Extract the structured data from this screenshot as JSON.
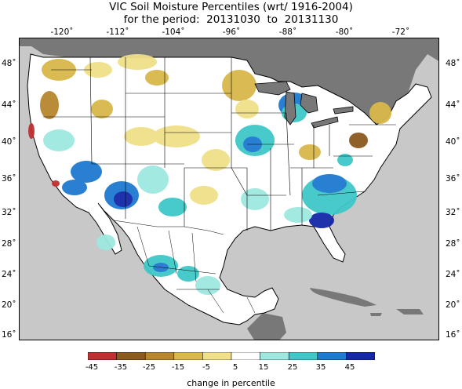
{
  "title": "VIC Soil Moisture Percentiles (wrt/ 1916-2004)",
  "period_prefix": "for the period:",
  "period_start": "20131030",
  "period_to": "to",
  "period_end": "20131130",
  "lon_labels": [
    "-120˚",
    "-112˚",
    "-104˚",
    "-96˚",
    "-88˚",
    "-80˚",
    "-72˚"
  ],
  "lat_labels": [
    "48˚",
    "44˚",
    "40˚",
    "36˚",
    "32˚",
    "28˚",
    "24˚",
    "20˚",
    "16˚"
  ],
  "legend": {
    "ticks": [
      "-45",
      "-35",
      "-25",
      "-15",
      "-5",
      "5",
      "15",
      "25",
      "35",
      "45"
    ],
    "colors": [
      "#c03030",
      "#8b5a1e",
      "#b8862e",
      "#d9b84a",
      "#f0e08a",
      "#ffffff",
      "#9ee8e0",
      "#40c8c8",
      "#1e7ad0",
      "#1428a8"
    ],
    "label": "change in percentile"
  },
  "map_colors": {
    "ocean": "#c8c8c8",
    "land_outside": "#787878",
    "lake": "#787878"
  }
}
